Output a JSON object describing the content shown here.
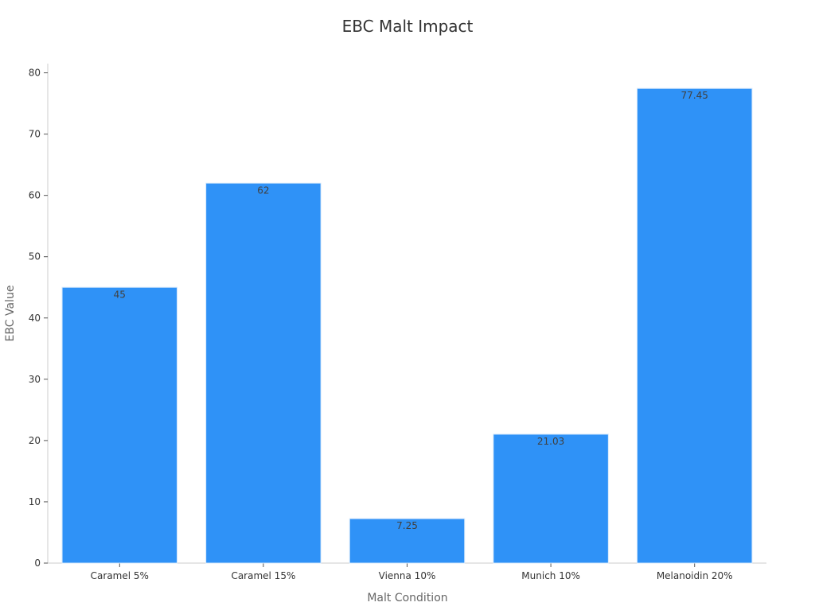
{
  "chart_data": {
    "type": "bar",
    "title": "EBC Malt Impact",
    "xlabel": "Malt Condition",
    "ylabel": "EBC Value",
    "categories": [
      "Caramel 5%",
      "Caramel 15%",
      "Vienna 10%",
      "Munich 10%",
      "Melanoidin 20%"
    ],
    "values": [
      45,
      62,
      7.25,
      21.03,
      77.45
    ],
    "data_labels": [
      "45",
      "62",
      "7.25",
      "21.03",
      "77.45"
    ],
    "ylim": [
      0,
      81.5
    ],
    "yticks": [
      0,
      10,
      20,
      30,
      40,
      50,
      60,
      70,
      80
    ],
    "ytick_labels": [
      "0",
      "10",
      "20",
      "30",
      "40",
      "50",
      "60",
      "70",
      "80"
    ],
    "grid": false,
    "legend": "none",
    "colors": {
      "bar": "#2f92f7",
      "bar_edge": "#d6e8fb"
    }
  }
}
